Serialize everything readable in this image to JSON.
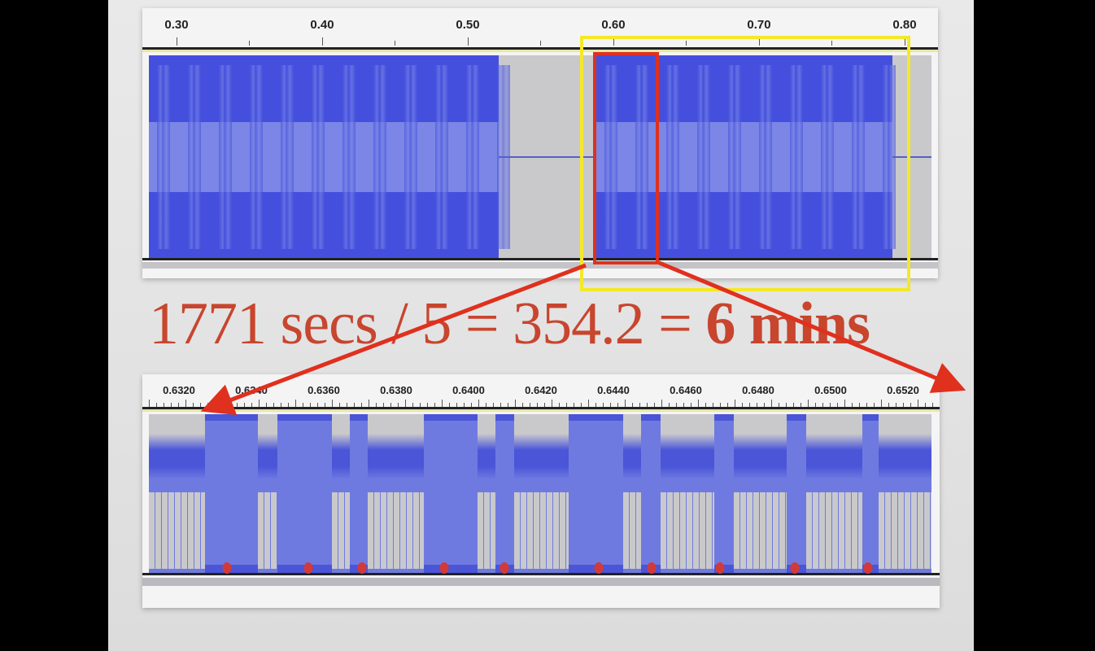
{
  "top_panel": {
    "ruler_labels": [
      "0.30",
      "0.40",
      "0.50",
      "0.60",
      "0.70",
      "0.80"
    ],
    "highlight_color": "#f5e829",
    "selection_color": "#e0301e"
  },
  "equation": {
    "part1": "1771 secs / 5 = 354.2 = ",
    "part2": "6 mins",
    "color": "#c8452e"
  },
  "bottom_panel": {
    "ruler_labels": [
      "0.6320",
      "0.6340",
      "0.6360",
      "0.6380",
      "0.6400",
      "0.6420",
      "0.6440",
      "0.6460",
      "0.6480",
      "0.6500",
      "0.6520"
    ]
  },
  "colors": {
    "waveform": "#4450dd",
    "waveform_rms": "#7b86e6",
    "silence": "#c9c9cc"
  }
}
